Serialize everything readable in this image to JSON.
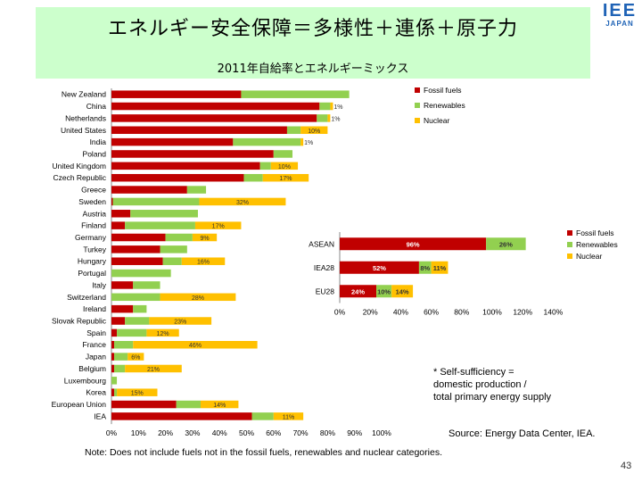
{
  "slide": {
    "title": "エネルギー安全保障＝多様性＋連係＋原子力",
    "subtitle": "2011年自給率とエネルギーミックス",
    "logo_top": "IEE",
    "logo_bottom": "JAPAN",
    "footnote_lines": [
      "* Self-sufficiency =",
      "domestic production /",
      "total primary energy supply"
    ],
    "source": "Source: Energy Data Center, IEA.",
    "note": "Note: Does not include fuels not in the fossil fuels, renewables and nuclear categories.",
    "page_number": "43"
  },
  "colors": {
    "fossil": "#c00000",
    "renewables": "#92d050",
    "nuclear": "#ffc000"
  },
  "chart_data": [
    {
      "type": "bar",
      "orientation": "horizontal",
      "stacked": true,
      "categories": [
        "New Zealand",
        "China",
        "Netherlands",
        "United States",
        "India",
        "Poland",
        "United Kingdom",
        "Czech Republic",
        "Greece",
        "Sweden",
        "Austria",
        "Finland",
        "Germany",
        "Turkey",
        "Hungary",
        "Portugal",
        "Italy",
        "Switzerland",
        "Ireland",
        "Slovak Republic",
        "Spain",
        "France",
        "Japan",
        "Belgium",
        "Luxembourg",
        "Korea",
        "European Union",
        "IEA"
      ],
      "series": [
        {
          "name": "Fossil fuels",
          "values": [
            48,
            77,
            76,
            65,
            45,
            60,
            55,
            49,
            28,
            0.5,
            7,
            5,
            20,
            18,
            19,
            0,
            8,
            0,
            8,
            5,
            2,
            1,
            1,
            1,
            0,
            1,
            24,
            52
          ]
        },
        {
          "name": "Renewables",
          "values": [
            40,
            4,
            4,
            5,
            25,
            7,
            4,
            7,
            7,
            32,
            25,
            26,
            10,
            10,
            7,
            22,
            10,
            18,
            5,
            9,
            11,
            7,
            5,
            4,
            2,
            1,
            9,
            8
          ]
        },
        {
          "name": "Nuclear",
          "values": [
            0,
            1,
            1,
            10,
            1,
            0,
            10,
            17,
            0,
            32,
            0,
            17,
            9,
            0,
            16,
            0,
            0,
            28,
            0,
            23,
            12,
            46,
            6,
            21,
            0,
            15,
            14,
            11
          ]
        }
      ],
      "data_labels": [
        "",
        "1%",
        "1%",
        "10%",
        "1%",
        "",
        "10%",
        "17%",
        "",
        "32%",
        "",
        "17%",
        "9%",
        "",
        "16%",
        "",
        "",
        "28%",
        "",
        "23%",
        "12%",
        "46%",
        "6%",
        "21%",
        "",
        "15%",
        "14%",
        "11%"
      ],
      "xlim": [
        0,
        100
      ],
      "x_ticks": [
        "0%",
        "10%",
        "20%",
        "30%",
        "40%",
        "50%",
        "60%",
        "70%",
        "80%",
        "90%",
        "100%"
      ],
      "legend": [
        "Fossil fuels",
        "Renewables",
        "Nuclear"
      ],
      "legend_position": "top-right"
    },
    {
      "type": "bar",
      "orientation": "horizontal",
      "stacked": true,
      "categories": [
        "ASEAN",
        "IEA28",
        "EU28"
      ],
      "series": [
        {
          "name": "Fossil fuels",
          "values": [
            96,
            52,
            24
          ],
          "labels": [
            "96%",
            "52%",
            "24%"
          ]
        },
        {
          "name": "Renewables",
          "values": [
            26,
            8,
            10
          ],
          "labels": [
            "26%",
            "8%",
            "10%"
          ]
        },
        {
          "name": "Nuclear",
          "values": [
            0,
            11,
            14
          ],
          "labels": [
            "",
            "11%",
            "14%"
          ]
        }
      ],
      "xlim": [
        0,
        140
      ],
      "x_ticks": [
        "0%",
        "20%",
        "40%",
        "60%",
        "80%",
        "100%",
        "120%",
        "140%"
      ],
      "legend": [
        "Fossil fuels",
        "Renewables",
        "Nuclear"
      ],
      "legend_position": "right"
    }
  ]
}
